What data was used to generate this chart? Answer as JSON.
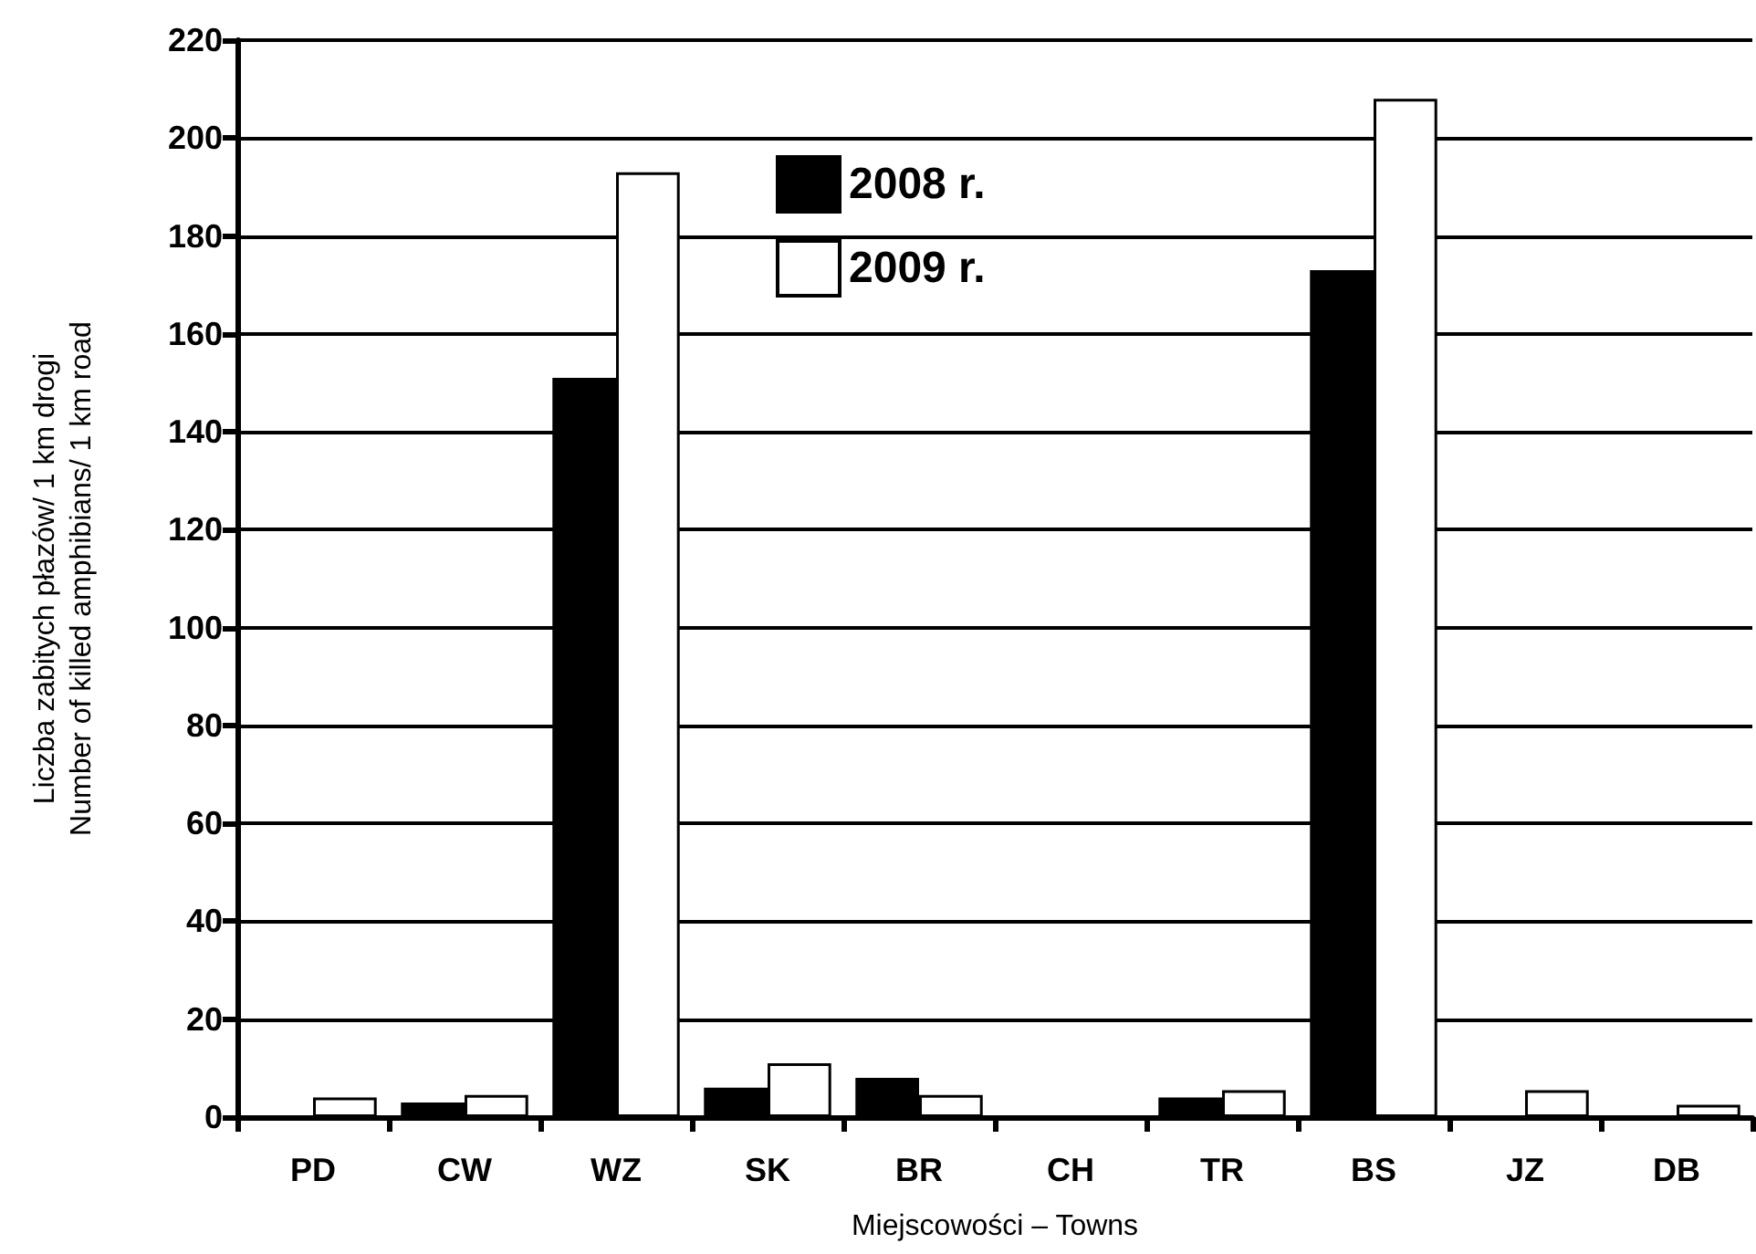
{
  "chart_data": {
    "type": "bar",
    "xlabel": "Miejscowości – Towns",
    "ylabel": "Liczba zabitych płazów/ 1 km drogi\nNumber of killed amphibians/ 1 km road",
    "categories": [
      "PD",
      "CW",
      "WZ",
      "SK",
      "BR",
      "CH",
      "TR",
      "BS",
      "JZ",
      "DB"
    ],
    "series": [
      {
        "name": "2008 r.",
        "color": "#000000",
        "values": [
          0,
          3,
          151,
          6,
          8,
          0,
          4,
          173,
          0,
          0
        ]
      },
      {
        "name": "2009 r.",
        "color": "#ffffff",
        "values": [
          4,
          4.5,
          193,
          11,
          4.5,
          0,
          5.5,
          208,
          5.5,
          2.5
        ]
      }
    ],
    "ylim": [
      0,
      220
    ],
    "yticks": [
      0,
      20,
      40,
      60,
      80,
      100,
      120,
      140,
      160,
      180,
      200,
      220
    ],
    "grid": "y",
    "legend": "top"
  }
}
